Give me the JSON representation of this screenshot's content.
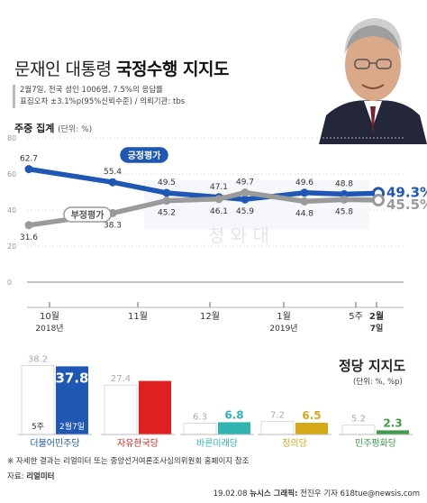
{
  "header": {
    "title_prefix": "문재인 대통령 ",
    "title_highlight": "국정수행 지지도"
  },
  "survey_info": {
    "line1": "2월7일, 전국 성인 1006명, 7.5%의 응답률",
    "line2": "표집오차 ±3.1%p(95%신뢰수준) / 의뢰기관: tbs"
  },
  "weekly": {
    "label": "주중 집계",
    "unit": "(단위: %)"
  },
  "watermark": {
    "text": "청 와 대"
  },
  "chart_data": [
    {
      "type": "line",
      "ylim": [
        0,
        80
      ],
      "yticks": [
        "0",
        "20",
        "40",
        "60",
        "80"
      ],
      "grid": true,
      "x_tick_labels": [
        {
          "label": "10월",
          "sub": "2018년"
        },
        {
          "label": "11월",
          "sub": ""
        },
        {
          "label": "12월",
          "sub": ""
        },
        {
          "label": "1월",
          "sub": "2019년"
        },
        {
          "label": "5주",
          "sub": ""
        },
        {
          "label": "2월",
          "sub": "7일"
        }
      ],
      "series": [
        {
          "name": "긍정평가",
          "color": "#1f57b4",
          "values": [
            62.7,
            55.4,
            49.5,
            47.1,
            45.9,
            49.6,
            48.8,
            49.3
          ],
          "labels": [
            "62.7",
            "55.4",
            "49.5",
            "47.1",
            "45.9",
            "49.6",
            "48.8",
            "49.3%"
          ]
        },
        {
          "name": "부정평가",
          "color": "#9a9a9a",
          "values": [
            31.6,
            38.3,
            45.2,
            46.1,
            49.7,
            44.8,
            45.8,
            45.5
          ],
          "labels": [
            "31.6",
            "38.3",
            "45.2",
            "46.1",
            "49.7",
            "44.8",
            "45.8",
            "45.5%"
          ]
        }
      ]
    },
    {
      "type": "bar",
      "title": "정당 지지도",
      "unit": "(단위: %, %p)",
      "legend": {
        "prev": "5주",
        "curr": "2월7일"
      },
      "categories": [
        "더불어민주당",
        "자유한국당",
        "바른미래당",
        "정의당",
        "민주평화당"
      ],
      "colors": [
        "#1f57b4",
        "#e02020",
        "#2fb4b0",
        "#d4a817",
        "#3e9b4a"
      ],
      "series": [
        {
          "name": "5주",
          "values": [
            38.2,
            27.4,
            6.3,
            7.2,
            5.2
          ]
        },
        {
          "name": "2월7일",
          "values": [
            37.8,
            29.7,
            6.8,
            6.5,
            2.3
          ]
        }
      ]
    }
  ],
  "footnote": "※ 자세한 결과는 리얼미터 또는 중앙선거여론조사심의위원회 홈페이지 참조",
  "source_label": "자료: ",
  "source_name": "리얼미터",
  "credit": {
    "date": "19.02.08",
    "agency": "뉴시스 그래픽:",
    "author": "전진우 기자 618tue@newsis.com"
  }
}
